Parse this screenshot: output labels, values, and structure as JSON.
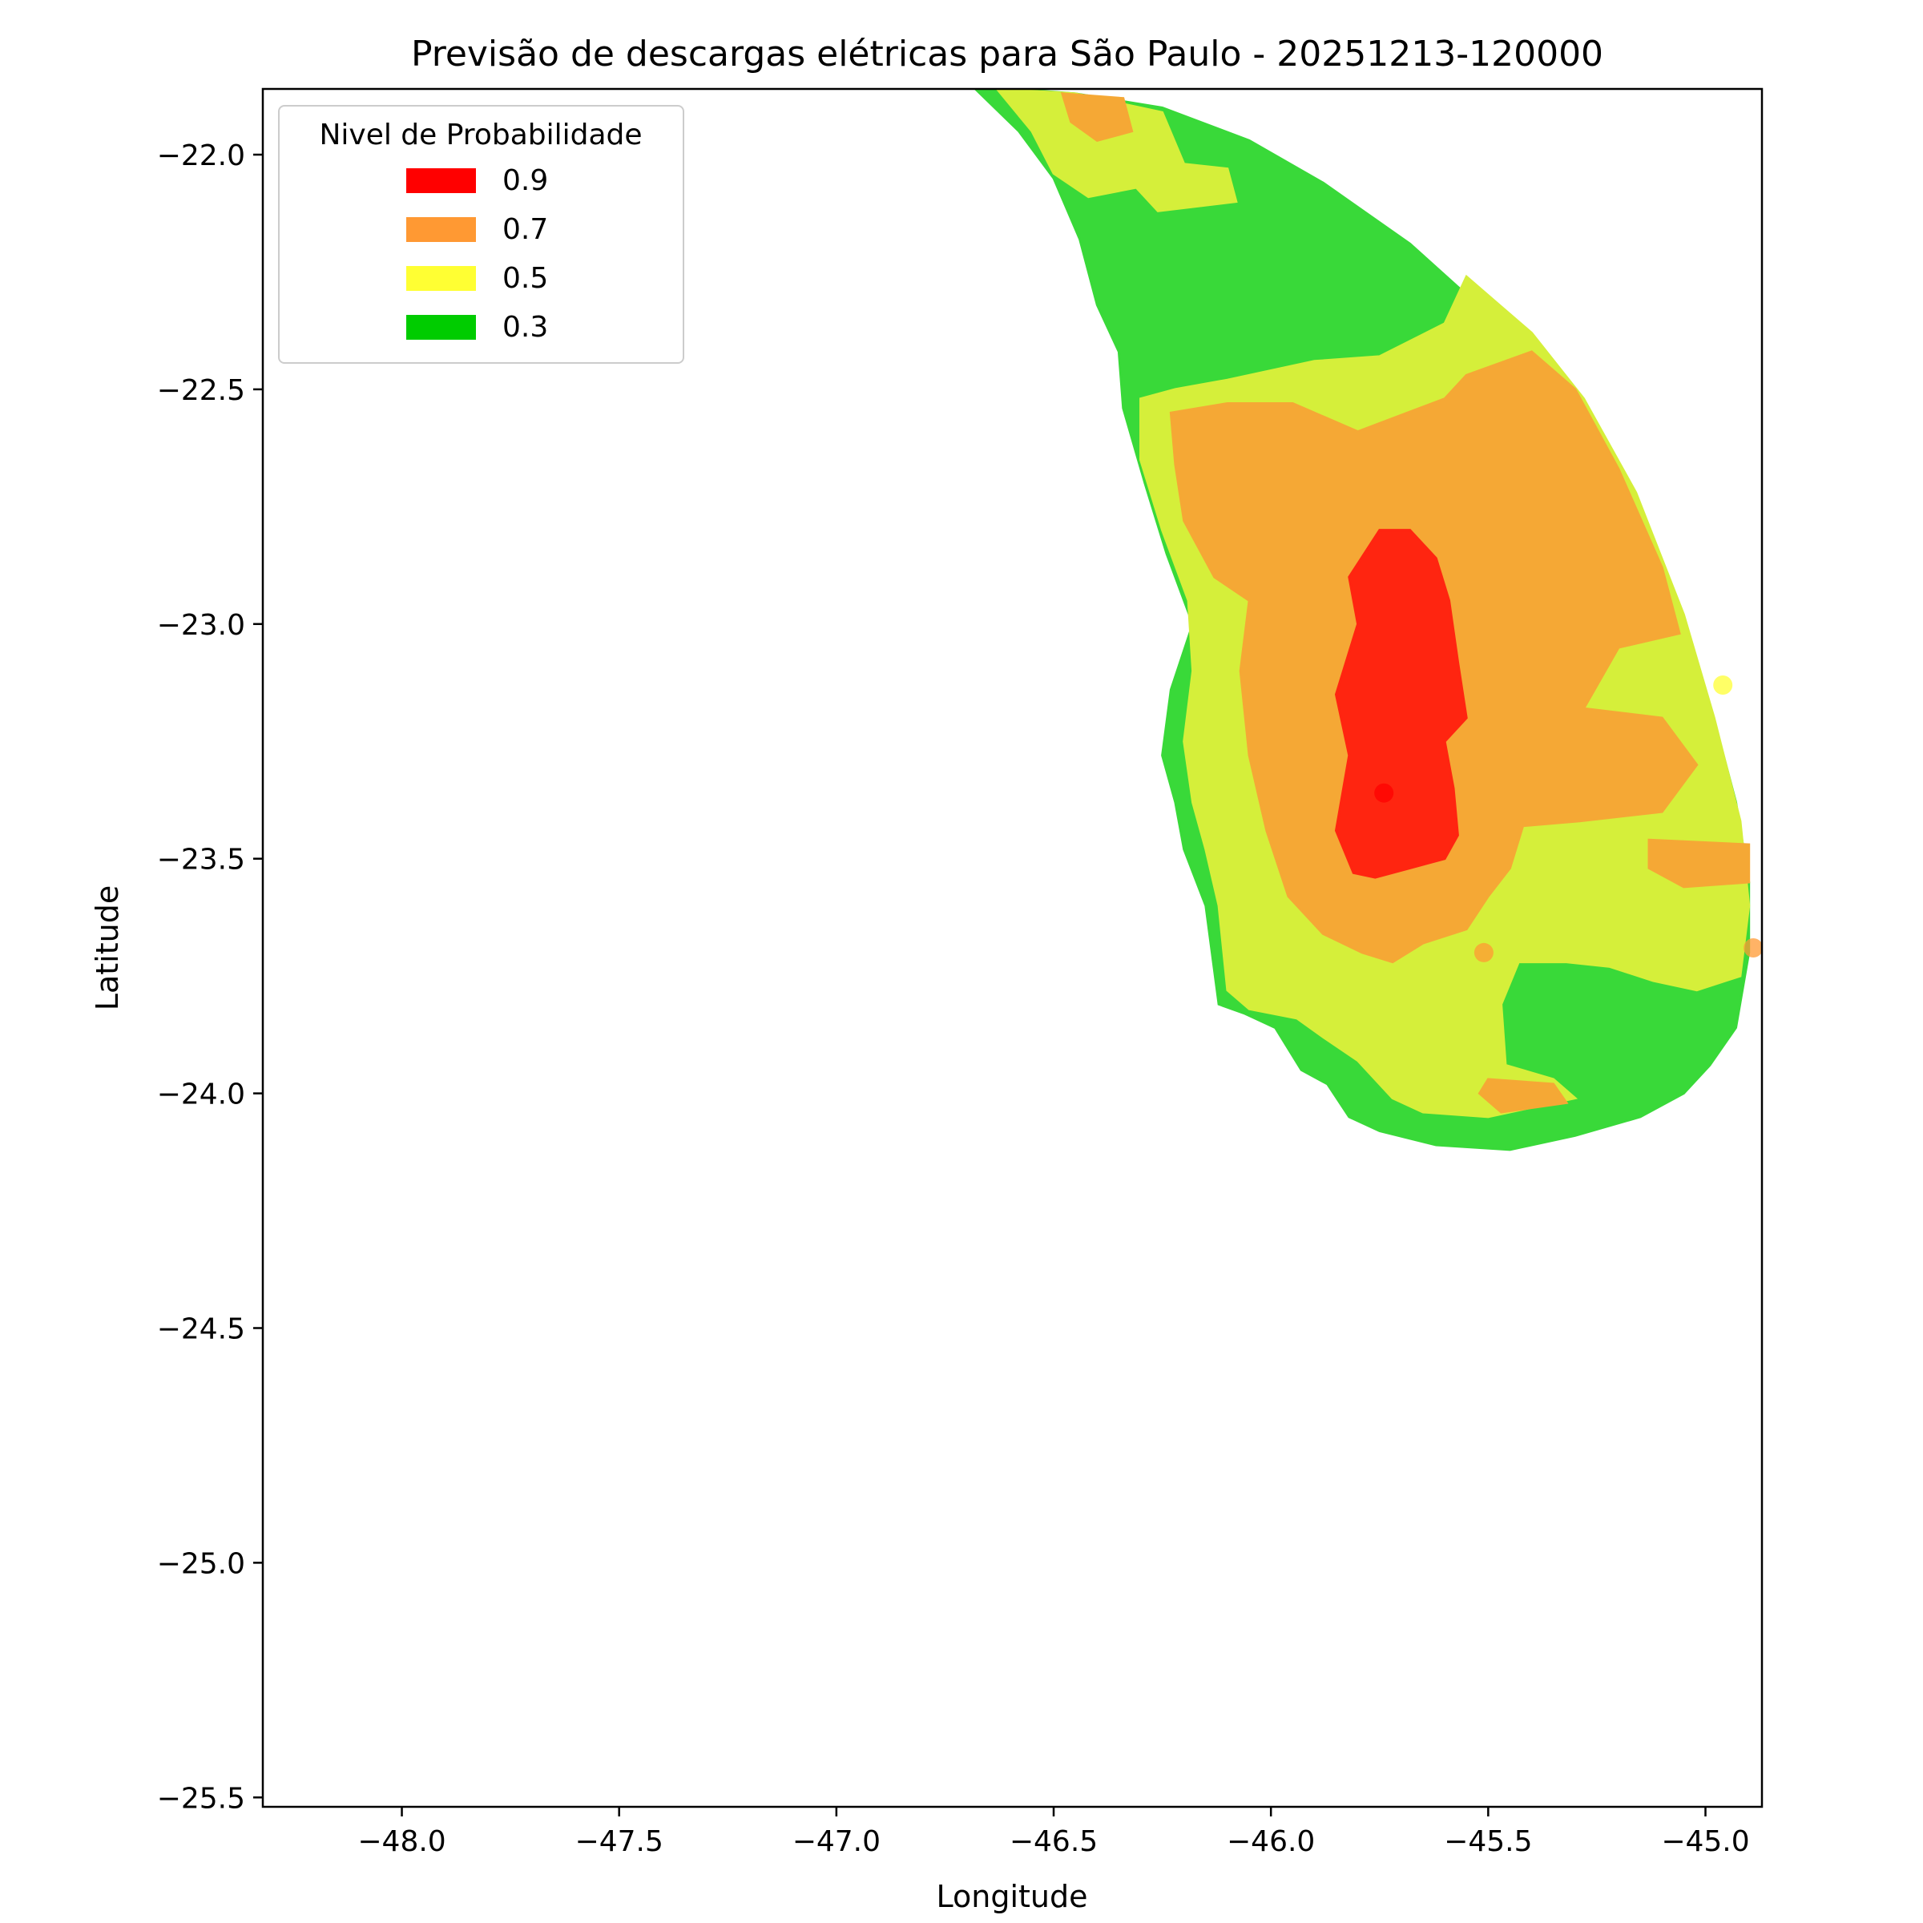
{
  "chart_data": {
    "type": "heatmap",
    "title": "Previsão de descargas elétricas para São Paulo - 20251213-120000",
    "xlabel": "Longitude",
    "ylabel": "Latitude",
    "xlim": [
      -48.32,
      -44.87
    ],
    "ylim": [
      -25.52,
      -21.86
    ],
    "xticks": [
      -48.0,
      -47.5,
      -47.0,
      -46.5,
      -46.0,
      -45.5,
      -45.0
    ],
    "xtick_labels": [
      "−48.0",
      "−47.5",
      "−47.0",
      "−46.5",
      "−46.0",
      "−45.5",
      "−45.0"
    ],
    "yticks": [
      -22.0,
      -22.5,
      -23.0,
      -23.5,
      -24.0,
      -24.5,
      -25.0,
      -25.5
    ],
    "ytick_labels": [
      "−22.0",
      "−22.5",
      "−23.0",
      "−23.5",
      "−24.0",
      "−24.5",
      "−25.0",
      "−25.5"
    ],
    "grid": false,
    "legend": {
      "title": "Nivel de Probabilidade",
      "placement": "top-left",
      "entries": [
        {
          "label": "0.9",
          "color": "#ff0000"
        },
        {
          "label": "0.7",
          "color": "#ff9933"
        },
        {
          "label": "0.5",
          "color": "#ffff33"
        },
        {
          "label": "0.3",
          "color": "#00cc00"
        }
      ]
    },
    "fill_colors": {
      "0.3": "#39d939",
      "0.5": "#d5ef3a",
      "0.7": "#f5a835",
      "0.9": "#ff2510"
    },
    "regions": [
      {
        "level": "0.3",
        "polygon": [
          [
            -46.68,
            -21.86
          ],
          [
            -46.59,
            -21.86
          ],
          [
            -46.45,
            -21.87
          ],
          [
            -46.25,
            -21.9
          ],
          [
            -46.05,
            -21.97
          ],
          [
            -45.88,
            -22.06
          ],
          [
            -45.68,
            -22.19
          ],
          [
            -45.5,
            -22.34
          ],
          [
            -45.33,
            -22.52
          ],
          [
            -45.18,
            -22.73
          ],
          [
            -45.07,
            -22.96
          ],
          [
            -44.99,
            -23.17
          ],
          [
            -44.93,
            -23.38
          ],
          [
            -44.9,
            -23.55
          ],
          [
            -44.9,
            -23.7
          ],
          [
            -44.93,
            -23.86
          ],
          [
            -44.99,
            -23.94
          ],
          [
            -45.05,
            -24.0
          ],
          [
            -45.15,
            -24.05
          ],
          [
            -45.3,
            -24.09
          ],
          [
            -45.45,
            -24.12
          ],
          [
            -45.62,
            -24.11
          ],
          [
            -45.75,
            -24.08
          ],
          [
            -45.82,
            -24.05
          ],
          [
            -45.87,
            -23.98
          ],
          [
            -45.93,
            -23.95
          ],
          [
            -45.99,
            -23.86
          ],
          [
            -46.06,
            -23.83
          ],
          [
            -46.12,
            -23.81
          ],
          [
            -46.15,
            -23.6
          ],
          [
            -46.2,
            -23.48
          ],
          [
            -46.22,
            -23.38
          ],
          [
            -46.25,
            -23.28
          ],
          [
            -46.23,
            -23.14
          ],
          [
            -46.18,
            -23.0
          ],
          [
            -46.24,
            -22.85
          ],
          [
            -46.29,
            -22.7
          ],
          [
            -46.34,
            -22.54
          ],
          [
            -46.35,
            -22.42
          ],
          [
            -46.4,
            -22.32
          ],
          [
            -46.44,
            -22.18
          ],
          [
            -46.5,
            -22.05
          ],
          [
            -46.58,
            -21.95
          ]
        ]
      },
      {
        "level": "0.5",
        "polygon": [
          [
            -46.63,
            -21.86
          ],
          [
            -46.45,
            -21.87
          ],
          [
            -46.25,
            -21.91
          ],
          [
            -46.2,
            -22.02
          ],
          [
            -46.1,
            -22.03
          ],
          [
            -46.08,
            -22.1
          ],
          [
            -46.26,
            -22.12
          ],
          [
            -46.31,
            -22.07
          ],
          [
            -46.42,
            -22.09
          ],
          [
            -46.5,
            -22.04
          ],
          [
            -46.55,
            -21.95
          ]
        ]
      },
      {
        "level": "0.5",
        "polygon": [
          [
            -45.55,
            -22.26
          ],
          [
            -45.4,
            -22.38
          ],
          [
            -45.28,
            -22.52
          ],
          [
            -45.16,
            -22.72
          ],
          [
            -45.05,
            -22.98
          ],
          [
            -44.98,
            -23.2
          ],
          [
            -44.92,
            -23.42
          ],
          [
            -44.9,
            -23.6
          ],
          [
            -44.92,
            -23.75
          ],
          [
            -45.02,
            -23.78
          ],
          [
            -45.12,
            -23.76
          ],
          [
            -45.22,
            -23.73
          ],
          [
            -45.32,
            -23.72
          ],
          [
            -45.43,
            -23.72
          ],
          [
            -45.47,
            -23.81
          ],
          [
            -45.46,
            -23.94
          ],
          [
            -45.35,
            -23.97
          ],
          [
            -45.3,
            -24.01
          ],
          [
            -45.5,
            -24.05
          ],
          [
            -45.65,
            -24.04
          ],
          [
            -45.72,
            -24.01
          ],
          [
            -45.8,
            -23.93
          ],
          [
            -45.88,
            -23.88
          ],
          [
            -45.94,
            -23.84
          ],
          [
            -46.05,
            -23.82
          ],
          [
            -46.1,
            -23.78
          ],
          [
            -46.12,
            -23.6
          ],
          [
            -46.15,
            -23.48
          ],
          [
            -46.18,
            -23.38
          ],
          [
            -46.2,
            -23.25
          ],
          [
            -46.18,
            -23.1
          ],
          [
            -46.19,
            -22.95
          ],
          [
            -46.25,
            -22.8
          ],
          [
            -46.3,
            -22.65
          ],
          [
            -46.3,
            -22.52
          ],
          [
            -46.22,
            -22.5
          ],
          [
            -46.1,
            -22.48
          ],
          [
            -45.9,
            -22.44
          ],
          [
            -45.75,
            -22.43
          ],
          [
            -45.6,
            -22.36
          ]
        ]
      },
      {
        "level": "0.7",
        "polygon": [
          [
            -46.23,
            -22.55
          ],
          [
            -46.1,
            -22.53
          ],
          [
            -45.95,
            -22.53
          ],
          [
            -45.8,
            -22.59
          ],
          [
            -45.6,
            -22.52
          ],
          [
            -45.55,
            -22.47
          ],
          [
            -45.4,
            -22.42
          ],
          [
            -45.3,
            -22.5
          ],
          [
            -45.2,
            -22.67
          ],
          [
            -45.1,
            -22.88
          ],
          [
            -45.06,
            -23.02
          ],
          [
            -45.2,
            -23.05
          ],
          [
            -45.28,
            -23.18
          ],
          [
            -45.1,
            -23.2
          ],
          [
            -45.02,
            -23.3
          ],
          [
            -45.1,
            -23.4
          ],
          [
            -45.29,
            -23.42
          ],
          [
            -45.42,
            -23.43
          ],
          [
            -45.45,
            -23.52
          ],
          [
            -45.5,
            -23.58
          ],
          [
            -45.55,
            -23.65
          ],
          [
            -45.65,
            -23.68
          ],
          [
            -45.72,
            -23.72
          ],
          [
            -45.79,
            -23.7
          ],
          [
            -45.88,
            -23.66
          ],
          [
            -45.96,
            -23.58
          ],
          [
            -46.01,
            -23.44
          ],
          [
            -46.05,
            -23.28
          ],
          [
            -46.07,
            -23.1
          ],
          [
            -46.05,
            -22.95
          ],
          [
            -46.13,
            -22.9
          ],
          [
            -46.2,
            -22.78
          ],
          [
            -46.22,
            -22.66
          ]
        ]
      },
      {
        "level": "0.7",
        "polygon": [
          [
            -46.48,
            -21.87
          ],
          [
            -46.34,
            -21.88
          ],
          [
            -46.32,
            -21.95
          ],
          [
            -46.4,
            -21.97
          ],
          [
            -46.46,
            -21.93
          ]
        ]
      },
      {
        "level": "0.7",
        "polygon": [
          [
            -45.13,
            -23.46
          ],
          [
            -44.9,
            -23.47
          ],
          [
            -44.9,
            -23.55
          ],
          [
            -45.05,
            -23.56
          ],
          [
            -45.13,
            -23.52
          ]
        ]
      },
      {
        "level": "0.7",
        "polygon": [
          [
            -45.5,
            -23.97
          ],
          [
            -45.35,
            -23.98
          ],
          [
            -45.32,
            -24.02
          ],
          [
            -45.47,
            -24.04
          ],
          [
            -45.52,
            -24.0
          ]
        ]
      },
      {
        "level": "0.9",
        "polygon": [
          [
            -45.75,
            -22.8
          ],
          [
            -45.68,
            -22.8
          ],
          [
            -45.62,
            -22.86
          ],
          [
            -45.59,
            -22.95
          ],
          [
            -45.57,
            -23.08
          ],
          [
            -45.55,
            -23.2
          ],
          [
            -45.6,
            -23.25
          ],
          [
            -45.58,
            -23.35
          ],
          [
            -45.57,
            -23.45
          ],
          [
            -45.6,
            -23.5
          ],
          [
            -45.68,
            -23.52
          ],
          [
            -45.76,
            -23.54
          ],
          [
            -45.81,
            -23.53
          ],
          [
            -45.85,
            -23.44
          ],
          [
            -45.82,
            -23.28
          ],
          [
            -45.85,
            -23.15
          ],
          [
            -45.8,
            -23.0
          ],
          [
            -45.82,
            -22.9
          ]
        ]
      }
    ],
    "points": [
      {
        "lon": -45.74,
        "lat": -23.36,
        "level": "0.9"
      },
      {
        "lon": -45.51,
        "lat": -23.7,
        "level": "0.7"
      },
      {
        "lon": -44.89,
        "lat": -23.69,
        "level": "0.7"
      },
      {
        "lon": -44.96,
        "lat": -23.13,
        "level": "0.5"
      }
    ]
  }
}
